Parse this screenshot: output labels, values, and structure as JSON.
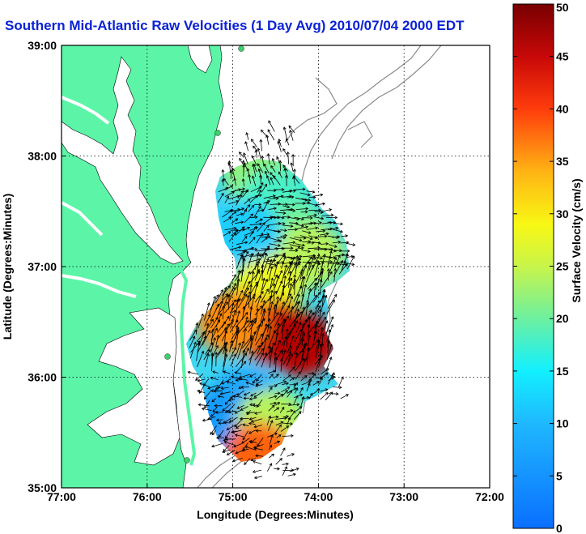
{
  "title": "Southern Mid-Atlantic Raw Velocities (1 Day Avg) 2010/07/04 2000 EDT",
  "chart_data": {
    "type": "heatmap",
    "title": "Southern Mid-Atlantic Raw Velocities (1 Day Avg) 2010/07/04 2000 EDT",
    "xlabel": "Longitude (Degrees:Minutes)",
    "ylabel": "Latitude (Degrees:Minutes)",
    "x_range": [
      -77,
      -72
    ],
    "y_range": [
      35,
      39
    ],
    "x_ticks": [
      -77,
      -76,
      -75,
      -74,
      -73,
      -72
    ],
    "x_tick_labels": [
      "77:00",
      "76:00",
      "75:00",
      "74:00",
      "73:00",
      "72:00"
    ],
    "y_ticks": [
      35,
      36,
      37,
      38,
      39
    ],
    "y_tick_labels": [
      "35:00",
      "36:00",
      "37:00",
      "38:00",
      "39:00"
    ],
    "grid": true,
    "colorbar": {
      "label": "Surface Velocity (cm/s)",
      "range": [
        0,
        50
      ],
      "ticks": [
        0,
        5,
        10,
        15,
        20,
        25,
        30,
        35,
        40,
        45,
        50
      ],
      "tick_labels": [
        "0",
        "5",
        "10",
        "15",
        "20",
        "25",
        "30",
        "35",
        "40",
        "45",
        "50"
      ]
    },
    "velocity_regions": [
      {
        "lon": -74.7,
        "lat": 37.85,
        "speed": 22
      },
      {
        "lon": -74.5,
        "lat": 37.6,
        "speed": 18
      },
      {
        "lon": -74.3,
        "lat": 37.3,
        "speed": 20
      },
      {
        "lon": -74.1,
        "lat": 37.1,
        "speed": 24
      },
      {
        "lon": -74.85,
        "lat": 37.3,
        "speed": 12
      },
      {
        "lon": -74.6,
        "lat": 36.8,
        "speed": 28
      },
      {
        "lon": -74.5,
        "lat": 36.4,
        "speed": 44
      },
      {
        "lon": -74.2,
        "lat": 36.3,
        "speed": 46
      },
      {
        "lon": -75.0,
        "lat": 36.5,
        "speed": 36
      },
      {
        "lon": -74.85,
        "lat": 35.8,
        "speed": 8
      },
      {
        "lon": -75.15,
        "lat": 35.6,
        "speed": 6
      },
      {
        "lon": -74.55,
        "lat": 35.6,
        "speed": 24
      },
      {
        "lon": -74.7,
        "lat": 35.3,
        "speed": 38
      }
    ]
  }
}
